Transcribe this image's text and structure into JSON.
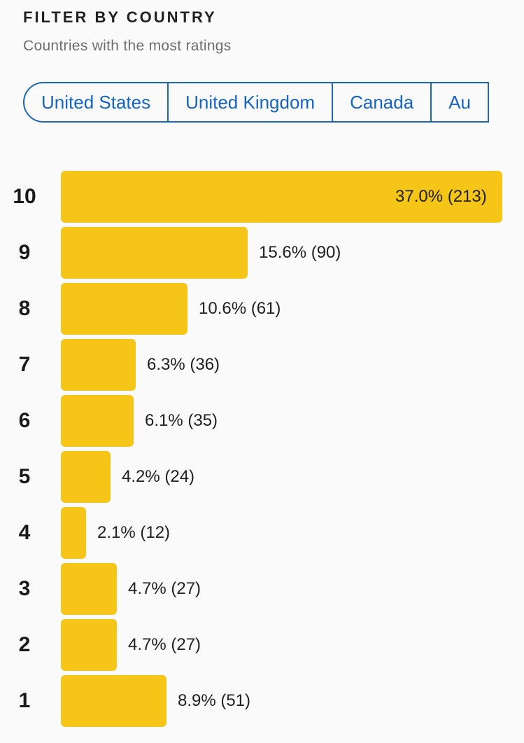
{
  "header": {
    "title": "FILTER BY COUNTRY",
    "subtitle": "Countries with the most ratings"
  },
  "countries": [
    {
      "label": "United States"
    },
    {
      "label": "United Kingdom"
    },
    {
      "label": "Canada"
    },
    {
      "label": "Au"
    }
  ],
  "colors": {
    "bar": "#f5c518",
    "chip_border": "#1e66b0",
    "chip_text": "#1565c0"
  },
  "chart_data": {
    "type": "bar",
    "orientation": "horizontal",
    "categories": [
      "10",
      "9",
      "8",
      "7",
      "6",
      "5",
      "4",
      "3",
      "2",
      "1"
    ],
    "values": [
      213,
      90,
      61,
      36,
      35,
      24,
      12,
      27,
      27,
      51
    ],
    "percents": [
      37.0,
      15.6,
      10.6,
      6.3,
      6.1,
      4.2,
      2.1,
      4.7,
      4.7,
      8.9
    ],
    "value_labels": [
      "37.0% (213)",
      "15.6% (90)",
      "10.6% (61)",
      "6.3% (36)",
      "6.1% (35)",
      "4.2% (24)",
      "2.1% (12)",
      "4.7% (27)",
      "4.7% (27)",
      "8.9% (51)"
    ],
    "xlim": [
      0,
      213
    ],
    "grid": false
  }
}
